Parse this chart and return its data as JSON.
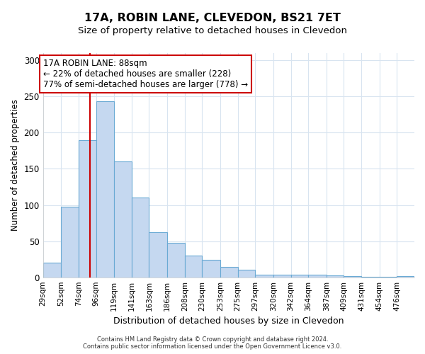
{
  "title": "17A, ROBIN LANE, CLEVEDON, BS21 7ET",
  "subtitle": "Size of property relative to detached houses in Clevedon",
  "xlabel": "Distribution of detached houses by size in Clevedon",
  "ylabel": "Number of detached properties",
  "bin_labels": [
    "29sqm",
    "52sqm",
    "74sqm",
    "96sqm",
    "119sqm",
    "141sqm",
    "163sqm",
    "186sqm",
    "208sqm",
    "230sqm",
    "253sqm",
    "275sqm",
    "297sqm",
    "320sqm",
    "342sqm",
    "364sqm",
    "387sqm",
    "409sqm",
    "431sqm",
    "454sqm",
    "476sqm"
  ],
  "bin_edges": [
    29,
    52,
    74,
    96,
    119,
    141,
    163,
    186,
    208,
    230,
    253,
    275,
    297,
    320,
    342,
    364,
    387,
    409,
    431,
    454,
    476
  ],
  "bar_heights": [
    20,
    98,
    190,
    243,
    160,
    110,
    62,
    48,
    30,
    24,
    14,
    10,
    4,
    4,
    4,
    4,
    3,
    2,
    1,
    1,
    2
  ],
  "bar_color": "#c5d8f0",
  "bar_edge_color": "#6aaad4",
  "property_size": 88,
  "red_line_color": "#cc0000",
  "annotation_line1": "17A ROBIN LANE: 88sqm",
  "annotation_line2": "← 22% of detached houses are smaller (228)",
  "annotation_line3": "77% of semi-detached houses are larger (778) →",
  "annotation_box_color": "#ffffff",
  "annotation_box_edge": "#cc0000",
  "footer_text": "Contains HM Land Registry data © Crown copyright and database right 2024.\nContains public sector information licensed under the Open Government Licence v3.0.",
  "ylim": [
    0,
    310
  ],
  "background_color": "#ffffff",
  "grid_color": "#d8e4f0"
}
